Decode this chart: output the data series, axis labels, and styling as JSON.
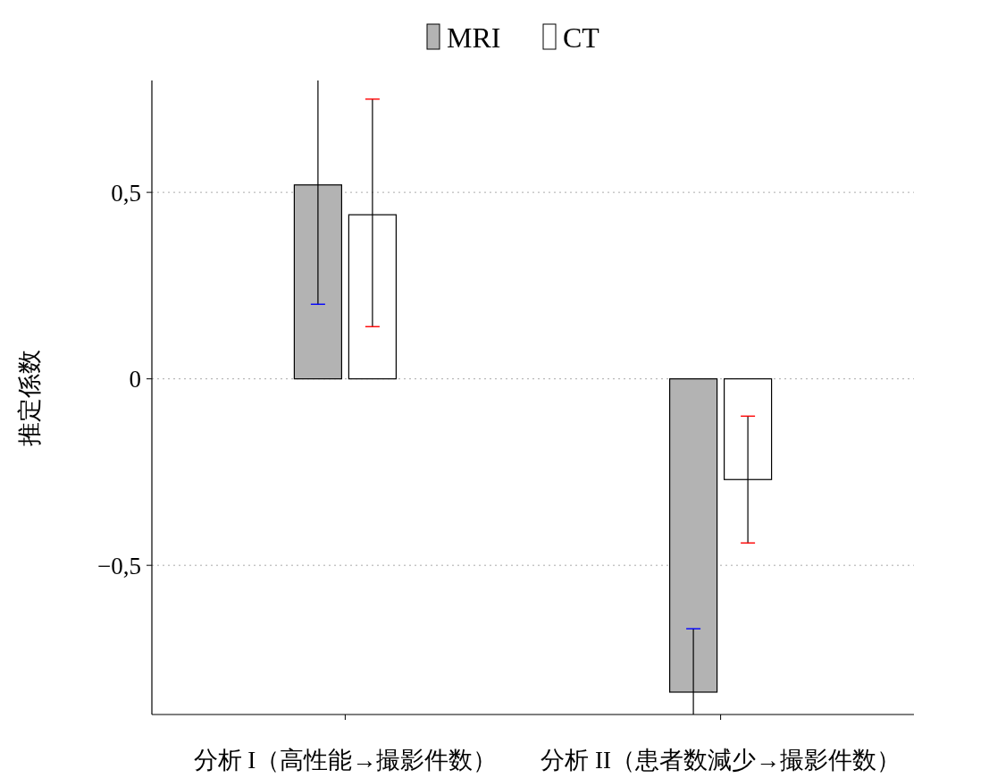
{
  "chart_data": {
    "type": "bar",
    "ylabel": "推定係数",
    "categories": [
      "分析 I（高性能→撮影件数）",
      "分析 II（患者数減少→撮影件数）"
    ],
    "series": [
      {
        "name": "MRI",
        "color": "#b3b3b3",
        "values": [
          0.52,
          -0.84
        ],
        "errors": [
          [
            0.2,
            0.8
          ],
          [
            -0.9,
            -0.67
          ]
        ]
      },
      {
        "name": "CT",
        "color": "#ffffff",
        "values": [
          0.44,
          -0.27
        ],
        "errors": [
          [
            0.14,
            0.75
          ],
          [
            -0.44,
            -0.1
          ]
        ]
      }
    ],
    "ylim": [
      -0.9,
      0.8
    ],
    "yticks": [
      {
        "value": -0.5,
        "label": "−0,5"
      },
      0,
      {
        "value": 0.5,
        "label": "0,5"
      }
    ],
    "grid": "y",
    "legend": "top"
  }
}
